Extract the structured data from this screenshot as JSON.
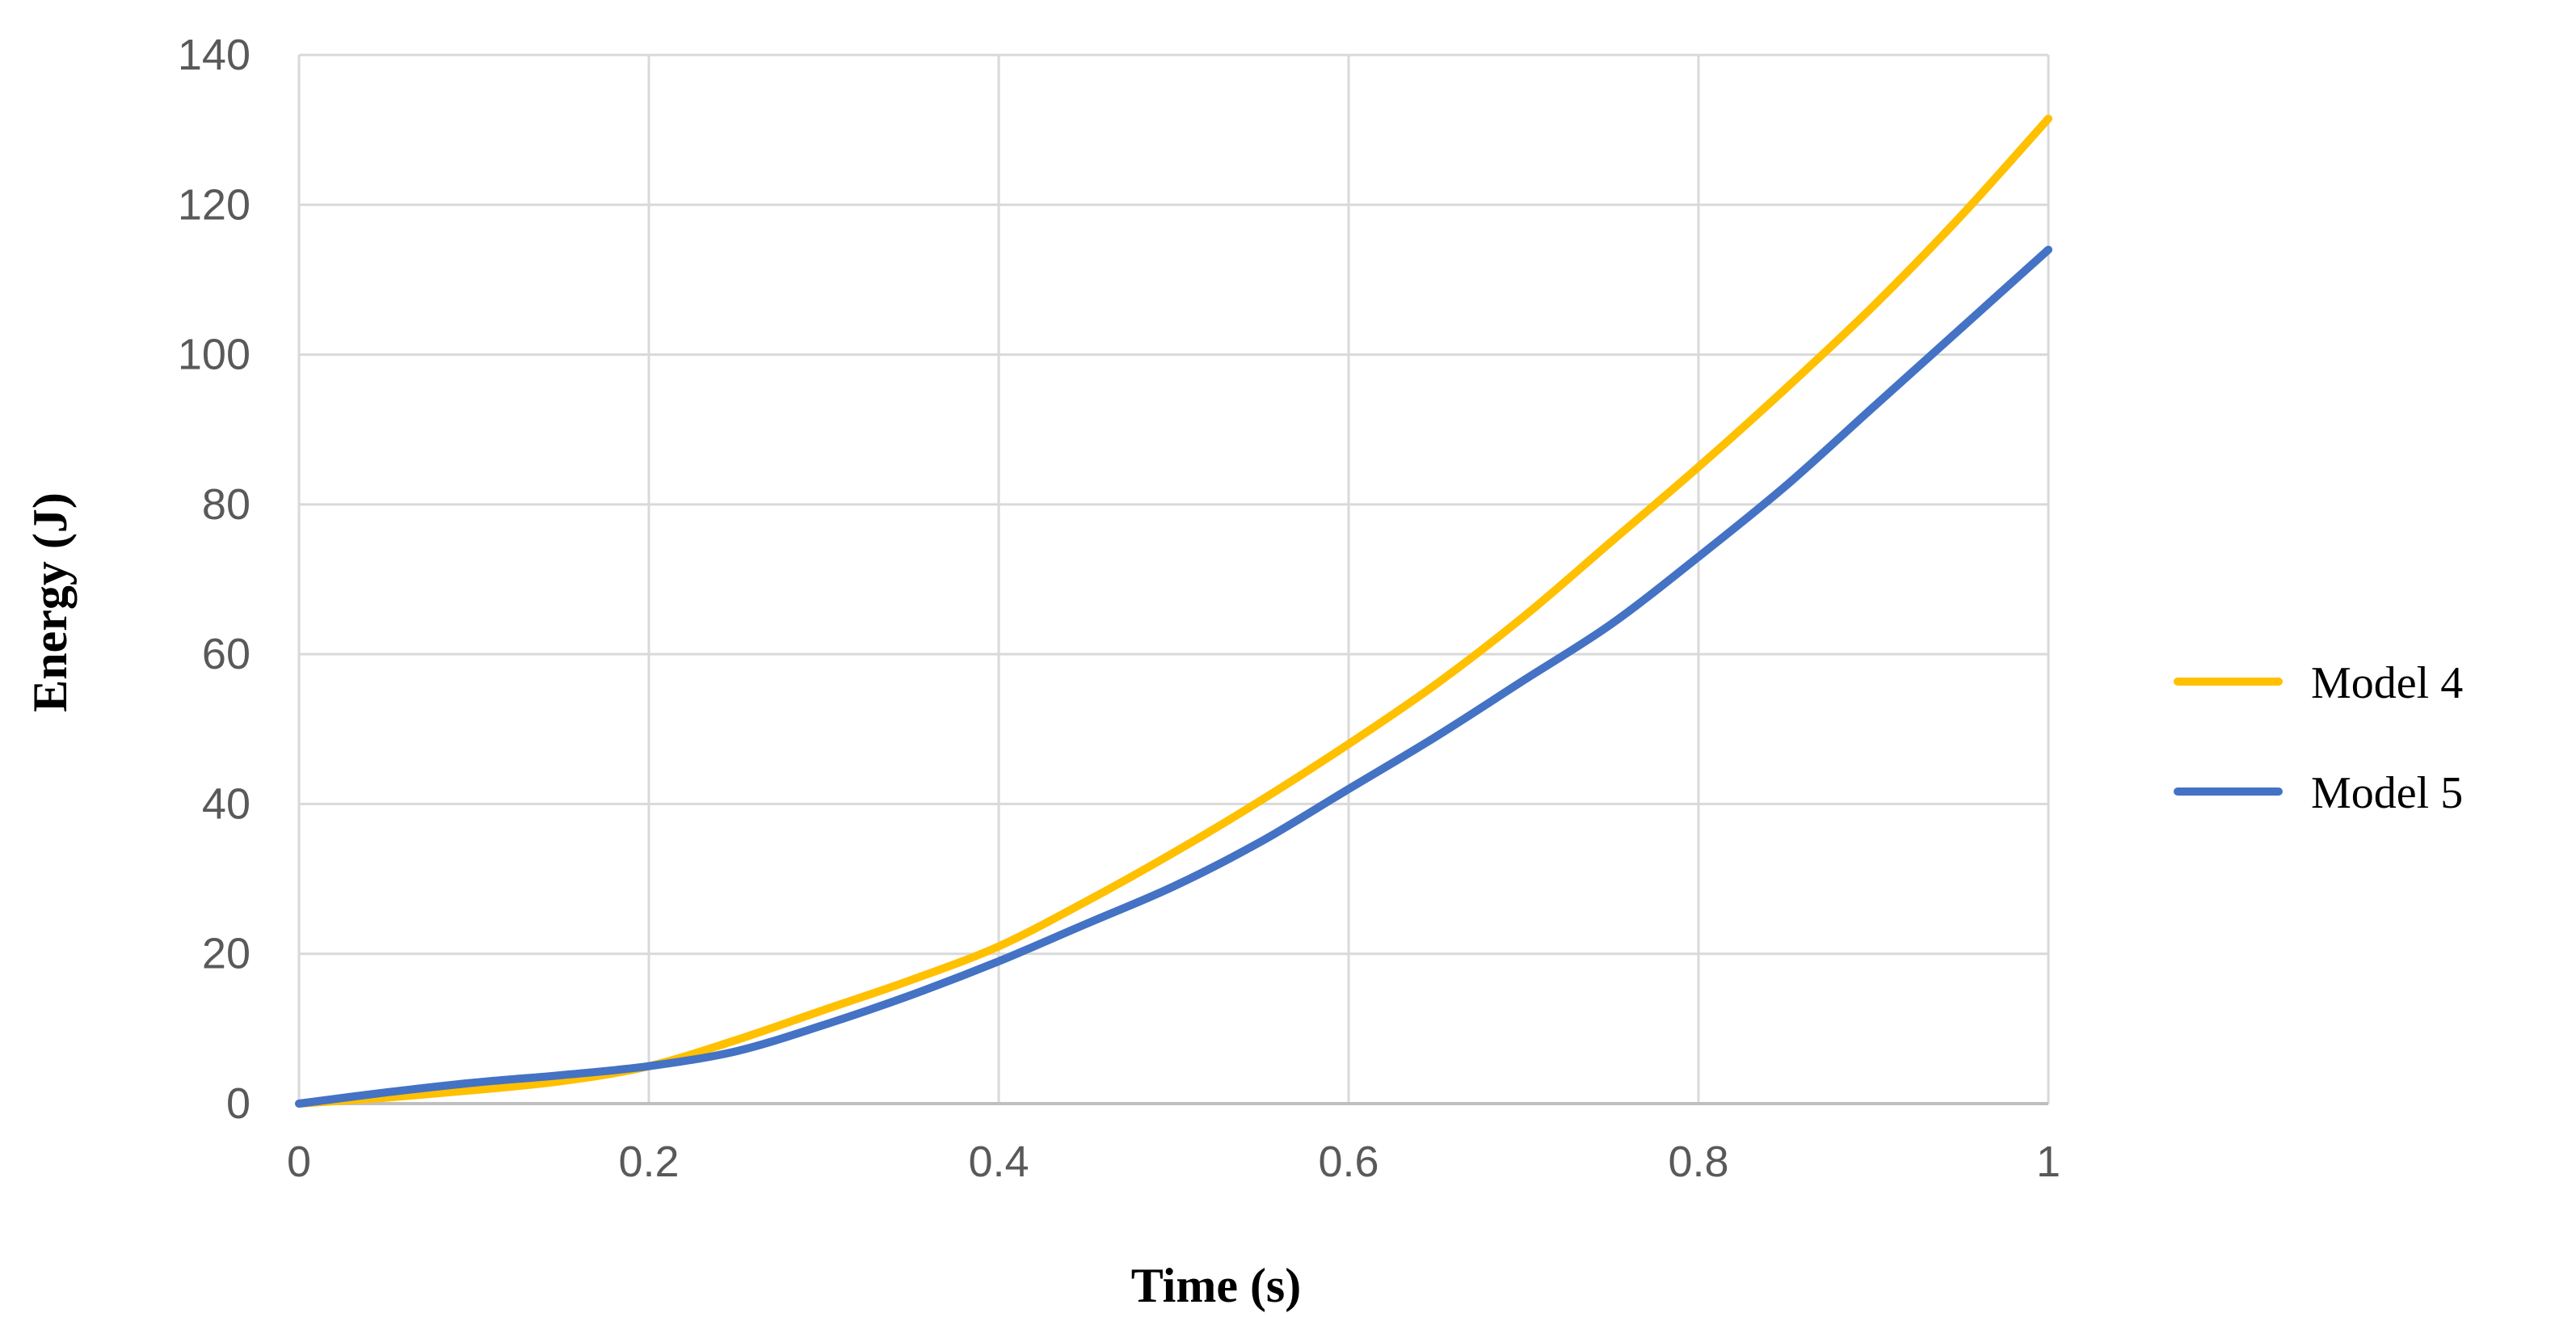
{
  "chart_data": {
    "type": "line",
    "title": "",
    "xlabel": "Time (s)",
    "ylabel": "Energy (J)",
    "xlim": [
      0,
      1
    ],
    "ylim": [
      0,
      140
    ],
    "x_ticks": [
      0,
      0.2,
      0.4,
      0.6,
      0.8,
      1
    ],
    "x_tick_labels": [
      "0",
      "0.2",
      "0.4",
      "0.6",
      "0.8",
      "1"
    ],
    "y_ticks": [
      0,
      20,
      40,
      60,
      80,
      100,
      120,
      140
    ],
    "y_tick_labels": [
      "0",
      "20",
      "40",
      "60",
      "80",
      "100",
      "120",
      "140"
    ],
    "grid": true,
    "legend_position": "right",
    "x": [
      0,
      0.05,
      0.1,
      0.15,
      0.2,
      0.25,
      0.3,
      0.35,
      0.4,
      0.45,
      0.5,
      0.55,
      0.6,
      0.65,
      0.7,
      0.75,
      0.8,
      0.85,
      0.9,
      0.95,
      1
    ],
    "series": [
      {
        "name": "Model 4",
        "color": "#FFC000",
        "values": [
          0,
          0.8,
          1.8,
          3.0,
          5.0,
          8.5,
          12.5,
          16.5,
          21.0,
          27.0,
          33.5,
          40.5,
          48.0,
          56.0,
          65.0,
          75.0,
          85.0,
          95.5,
          106.5,
          118.5,
          131.5
        ]
      },
      {
        "name": "Model 5",
        "color": "#4472C4",
        "values": [
          0,
          1.5,
          2.8,
          3.8,
          5.0,
          7.0,
          10.5,
          14.5,
          19.0,
          24.0,
          29.0,
          35.0,
          42.0,
          49.0,
          56.5,
          64.0,
          73.0,
          82.5,
          93.0,
          103.5,
          114.0
        ]
      }
    ]
  }
}
